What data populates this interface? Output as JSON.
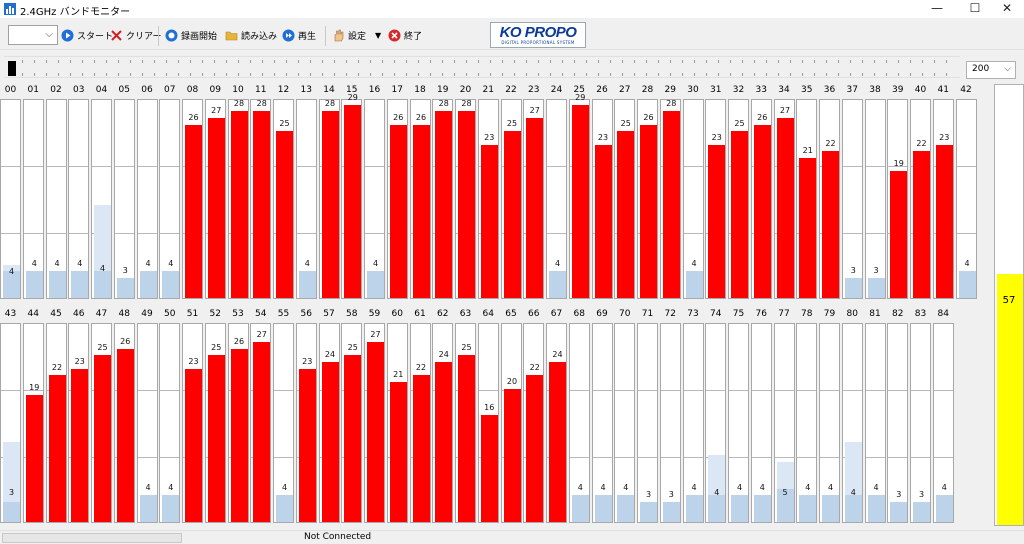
{
  "window": {
    "title": "2.4GHz バンドモニター",
    "minimize_glyph": "—",
    "maximize_glyph": "☐",
    "close_glyph": "✕"
  },
  "toolbar": {
    "combo_value": "",
    "start_label": "スタート",
    "clear_label": "クリアー",
    "record_label": "録画開始",
    "load_label": "読み込み",
    "play_label": "再生",
    "settings_label": "設定",
    "exit_label": "終了"
  },
  "logo": {
    "text": "KO PROPO",
    "subtitle": "DIGITAL PROPORTIONAL SYSTEM"
  },
  "scale_select": {
    "value": "200"
  },
  "level": {
    "value": 57,
    "color": "#ffff00"
  },
  "status": {
    "text": "Not Connected"
  },
  "colors": {
    "active": "#ff0000",
    "idle": "#bcd3ea",
    "level": "#ffff00"
  },
  "chart_data": {
    "type": "bar",
    "ylim": [
      0,
      30
    ],
    "channels": [
      {
        "label": "00",
        "value": 4
      },
      {
        "label": "01",
        "value": 4
      },
      {
        "label": "02",
        "value": 4
      },
      {
        "label": "03",
        "value": 4
      },
      {
        "label": "04",
        "value": 4
      },
      {
        "label": "05",
        "value": 3
      },
      {
        "label": "06",
        "value": 4
      },
      {
        "label": "07",
        "value": 4
      },
      {
        "label": "08",
        "value": 26
      },
      {
        "label": "09",
        "value": 27
      },
      {
        "label": "10",
        "value": 28
      },
      {
        "label": "11",
        "value": 28
      },
      {
        "label": "12",
        "value": 25
      },
      {
        "label": "13",
        "value": 4
      },
      {
        "label": "14",
        "value": 28
      },
      {
        "label": "15",
        "value": 29
      },
      {
        "label": "16",
        "value": 4
      },
      {
        "label": "17",
        "value": 26
      },
      {
        "label": "18",
        "value": 26
      },
      {
        "label": "19",
        "value": 28
      },
      {
        "label": "20",
        "value": 28
      },
      {
        "label": "21",
        "value": 23
      },
      {
        "label": "22",
        "value": 25
      },
      {
        "label": "23",
        "value": 27
      },
      {
        "label": "24",
        "value": 4
      },
      {
        "label": "25",
        "value": 29
      },
      {
        "label": "26",
        "value": 23
      },
      {
        "label": "27",
        "value": 25
      },
      {
        "label": "28",
        "value": 26
      },
      {
        "label": "29",
        "value": 28
      },
      {
        "label": "30",
        "value": 4
      },
      {
        "label": "31",
        "value": 23
      },
      {
        "label": "32",
        "value": 25
      },
      {
        "label": "33",
        "value": 26
      },
      {
        "label": "34",
        "value": 27
      },
      {
        "label": "35",
        "value": 21
      },
      {
        "label": "36",
        "value": 22
      },
      {
        "label": "37",
        "value": 3
      },
      {
        "label": "38",
        "value": 3
      },
      {
        "label": "39",
        "value": 19
      },
      {
        "label": "40",
        "value": 22
      },
      {
        "label": "41",
        "value": 23
      },
      {
        "label": "42",
        "value": 4
      },
      {
        "label": "43",
        "value": 3
      },
      {
        "label": "44",
        "value": 19
      },
      {
        "label": "45",
        "value": 22
      },
      {
        "label": "46",
        "value": 23
      },
      {
        "label": "47",
        "value": 25
      },
      {
        "label": "48",
        "value": 26
      },
      {
        "label": "49",
        "value": 4
      },
      {
        "label": "50",
        "value": 4
      },
      {
        "label": "51",
        "value": 23
      },
      {
        "label": "52",
        "value": 25
      },
      {
        "label": "53",
        "value": 26
      },
      {
        "label": "54",
        "value": 27
      },
      {
        "label": "55",
        "value": 4
      },
      {
        "label": "56",
        "value": 23
      },
      {
        "label": "57",
        "value": 24
      },
      {
        "label": "58",
        "value": 25
      },
      {
        "label": "59",
        "value": 27
      },
      {
        "label": "60",
        "value": 21
      },
      {
        "label": "61",
        "value": 22
      },
      {
        "label": "62",
        "value": 24
      },
      {
        "label": "63",
        "value": 25
      },
      {
        "label": "64",
        "value": 16
      },
      {
        "label": "65",
        "value": 20
      },
      {
        "label": "66",
        "value": 22
      },
      {
        "label": "67",
        "value": 24
      },
      {
        "label": "68",
        "value": 4
      },
      {
        "label": "69",
        "value": 4
      },
      {
        "label": "70",
        "value": 4
      },
      {
        "label": "71",
        "value": 3
      },
      {
        "label": "72",
        "value": 3
      },
      {
        "label": "73",
        "value": 4
      },
      {
        "label": "74",
        "value": 4
      },
      {
        "label": "75",
        "value": 4
      },
      {
        "label": "76",
        "value": 4
      },
      {
        "label": "77",
        "value": 5
      },
      {
        "label": "78",
        "value": 4
      },
      {
        "label": "79",
        "value": 4
      },
      {
        "label": "80",
        "value": 4
      },
      {
        "label": "81",
        "value": 4
      },
      {
        "label": "82",
        "value": 3
      },
      {
        "label": "83",
        "value": 3
      },
      {
        "label": "84",
        "value": 4
      }
    ],
    "peak_hold": {
      "00": 5,
      "04": 14,
      "43": 12,
      "74": 10,
      "77": 9,
      "80": 12
    }
  }
}
